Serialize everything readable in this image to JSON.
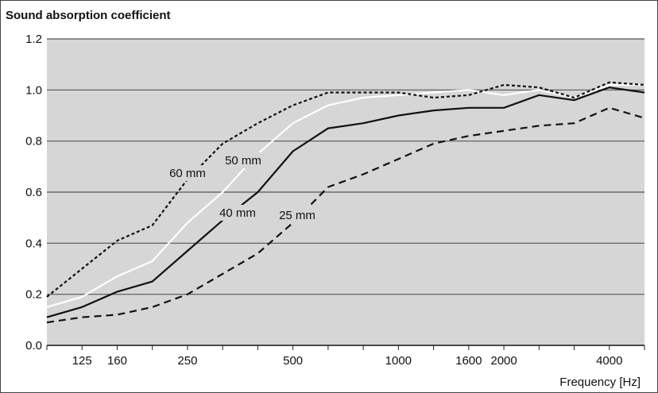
{
  "chart_data": {
    "type": "line",
    "title": "Sound absorption coefficient",
    "xlabel": "Frequency [Hz]",
    "ylabel": "",
    "x_scale": "log",
    "x_ticks": [
      "125",
      "160",
      "250",
      "500",
      "1000",
      "1600",
      "2000",
      "4000"
    ],
    "y_ticks": [
      "0.0",
      "0.2",
      "0.4",
      "0.6",
      "0.8",
      "1.0",
      "1.2"
    ],
    "ylim": [
      0,
      1.2
    ],
    "grid": "horizontal",
    "x": [
      100,
      125,
      160,
      200,
      250,
      315,
      400,
      500,
      630,
      800,
      1000,
      1250,
      1600,
      2000,
      2500,
      3150,
      4000,
      5000
    ],
    "series": [
      {
        "name": "25 mm",
        "style": "long-dash",
        "color": "#111111",
        "values": [
          0.09,
          0.11,
          0.12,
          0.15,
          0.2,
          0.28,
          0.36,
          0.48,
          0.62,
          0.67,
          0.73,
          0.79,
          0.82,
          0.84,
          0.86,
          0.87,
          0.93,
          0.89
        ]
      },
      {
        "name": "40 mm",
        "style": "solid",
        "color": "#111111",
        "values": [
          0.11,
          0.15,
          0.21,
          0.25,
          0.37,
          0.49,
          0.6,
          0.76,
          0.85,
          0.87,
          0.9,
          0.92,
          0.93,
          0.93,
          0.98,
          0.96,
          1.01,
          0.99
        ]
      },
      {
        "name": "50 mm",
        "style": "solid",
        "color": "#ffffff",
        "values": [
          0.15,
          0.19,
          0.27,
          0.33,
          0.48,
          0.6,
          0.75,
          0.87,
          0.94,
          0.97,
          0.98,
          0.99,
          1.0,
          0.98,
          1.0,
          0.97,
          1.02,
          1.02
        ]
      },
      {
        "name": "60 mm",
        "style": "dotted",
        "color": "#111111",
        "values": [
          0.19,
          0.3,
          0.41,
          0.47,
          0.65,
          0.79,
          0.87,
          0.94,
          0.99,
          0.99,
          0.99,
          0.97,
          0.98,
          1.02,
          1.01,
          0.97,
          1.03,
          1.02
        ]
      }
    ]
  }
}
